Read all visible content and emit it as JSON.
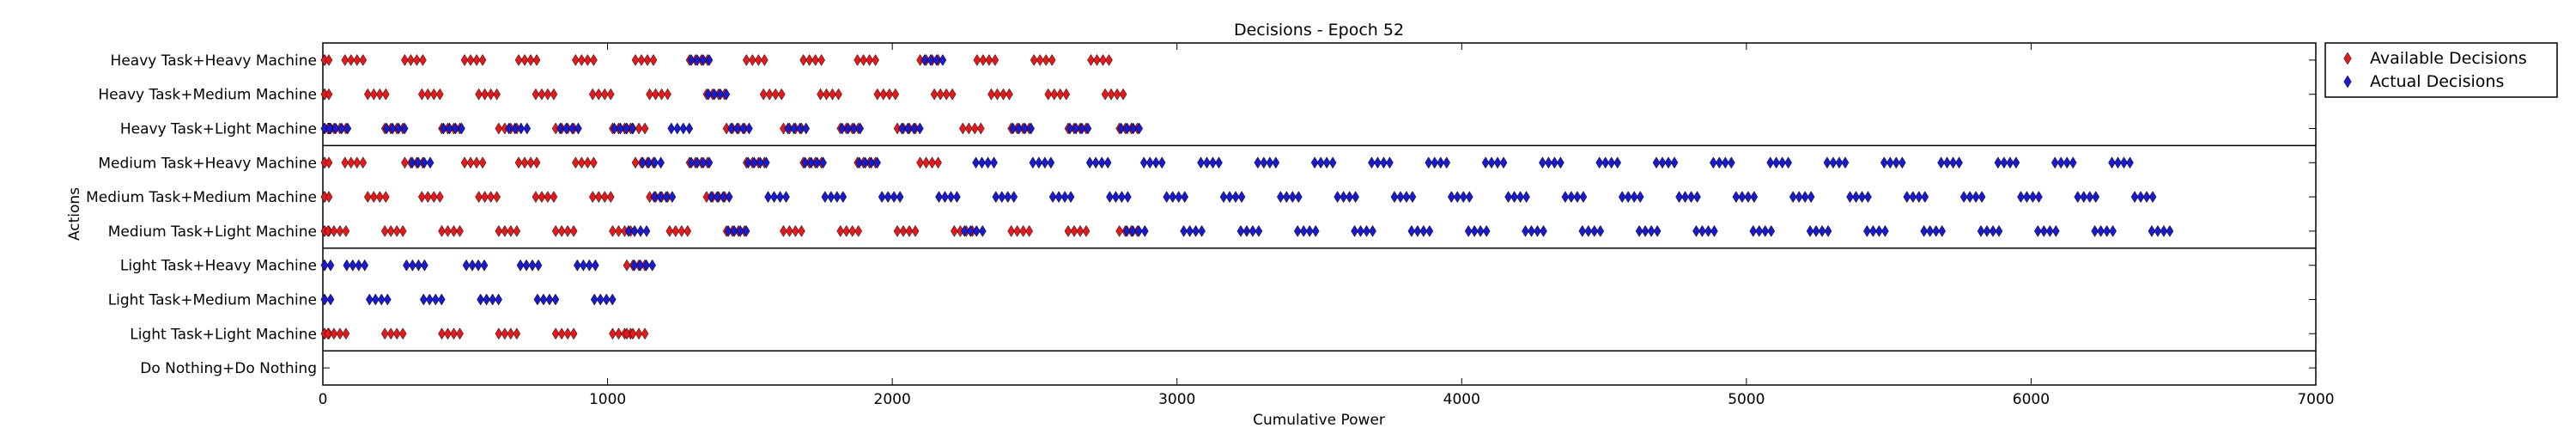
{
  "chart_data": {
    "type": "scatter",
    "title": "Decisions - Epoch 52",
    "xlabel": "Cumulative Power",
    "ylabel": "Actions",
    "xlim": [
      0,
      7000
    ],
    "x_ticks": [
      0,
      1000,
      2000,
      3000,
      4000,
      5000,
      6000,
      7000
    ],
    "categories": [
      "Heavy Task+Heavy Machine",
      "Heavy Task+Medium Machine",
      "Heavy Task+Light Machine",
      "Medium Task+Heavy Machine",
      "Medium Task+Medium Machine",
      "Medium Task+Light Machine",
      "Light Task+Heavy Machine",
      "Light Task+Medium Machine",
      "Light Task+Light Machine",
      "Do Nothing+Do Nothing"
    ],
    "group_separators_after": [
      2,
      5,
      8
    ],
    "grid": false,
    "legend_position": "outside-top-right",
    "colors": {
      "available": "#e31a1c",
      "actual": "#1a1acc",
      "frame": "#000000"
    },
    "marker": "diamond",
    "series": [
      {
        "name": "Available Decisions",
        "color": "#e31a1c",
        "points": [
          {
            "y": "Heavy Task+Heavy Machine",
            "x": [
              0,
              120,
              330,
              540,
              730,
              930,
              1140,
              1330,
              1530,
              1730,
              1920,
              2140,
              2340,
              2540,
              2740
            ]
          },
          {
            "y": "Heavy Task+Medium Machine",
            "x": [
              0,
              200,
              390,
              590,
              790,
              990,
              1190,
              1390,
              1590,
              1790,
              1990,
              2190,
              2390,
              2590,
              2790
            ]
          },
          {
            "y": "Heavy Task+Light Machine",
            "x": [
              0,
              60,
              260,
              460,
              660,
              860,
              1060,
              1110,
              1460,
              1660,
              1860,
              2060,
              2290,
              2460,
              2660,
              2840
            ]
          },
          {
            "y": "Medium Task+Heavy Machine",
            "x": [
              0,
              120,
              330,
              540,
              730,
              930,
              1140,
              1330,
              1530,
              1730,
              1920,
              2140
            ]
          },
          {
            "y": "Medium Task+Medium Machine",
            "x": [
              0,
              200,
              390,
              590,
              790,
              990,
              1190,
              1390
            ]
          },
          {
            "y": "Medium Task+Light Machine",
            "x": [
              0,
              60,
              260,
              460,
              660,
              860,
              1060,
              1260,
              1460,
              1660,
              1860,
              2060,
              2260,
              2460,
              2660,
              2840
            ]
          },
          {
            "y": "Light Task+Heavy Machine",
            "x": [
              1110
            ]
          },
          {
            "y": "Light Task+Light Machine",
            "x": [
              0,
              60,
              260,
              460,
              660,
              860,
              1060,
              1110
            ]
          }
        ]
      },
      {
        "name": "Actual Decisions",
        "color": "#1a1acc",
        "points": [
          {
            "y": "Heavy Task+Heavy Machine",
            "x": [
              1330,
              2150
            ]
          },
          {
            "y": "Heavy Task+Medium Machine",
            "x": [
              1390
            ]
          },
          {
            "y": "Heavy Task+Light Machine",
            "x": [
              0,
              60,
              260,
              460,
              690,
              870,
              1060,
              1260,
              1470,
              1670,
              1860,
              2070,
              2460,
              2660,
              2840
            ]
          },
          {
            "y": "Medium Task+Heavy Machine",
            "x": [
              350,
              1160,
              1330,
              1530,
              1730,
              1920,
              2330,
              2530,
              2730,
              2920,
              3120,
              3320,
              3520,
              3720,
              3920,
              4120,
              4320,
              4520,
              4720,
              4920,
              5120,
              5320,
              5520,
              5720,
              5920,
              6120,
              6320
            ]
          },
          {
            "y": "Medium Task+Medium Machine",
            "x": [
              1200,
              1400,
              1600,
              1800,
              2000,
              2200,
              2400,
              2600,
              2800,
              3000,
              3200,
              3400,
              3600,
              3800,
              4000,
              4200,
              4400,
              4600,
              4800,
              5000,
              5200,
              5400,
              5600,
              5800,
              6000,
              6200,
              6400
            ]
          },
          {
            "y": "Medium Task+Light Machine",
            "x": [
              1110,
              1460,
              2290,
              2860,
              3060,
              3260,
              3460,
              3660,
              3860,
              4060,
              4260,
              4460,
              4660,
              4860,
              5060,
              5260,
              5460,
              5660,
              5860,
              6060,
              6260,
              6460
            ]
          },
          {
            "y": "Light Task+Heavy Machine",
            "x": [
              0,
              120,
              330,
              540,
              730,
              930,
              1130
            ]
          },
          {
            "y": "Light Task+Medium Machine",
            "x": [
              0,
              200,
              390,
              590,
              790,
              990
            ]
          }
        ]
      }
    ]
  }
}
